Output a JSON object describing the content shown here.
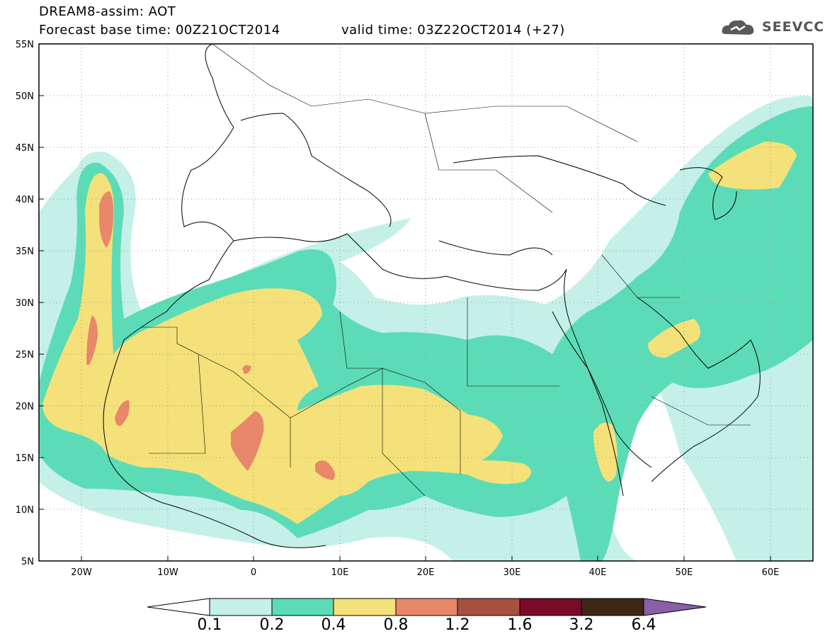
{
  "title": {
    "line1": "DREAM8-assim: AOT",
    "base_time": "Forecast base time: 00Z21OCT2014",
    "valid_time": "valid time: 03Z22OCT2014 (+27)"
  },
  "logo": {
    "text": "SEEVCCC",
    "icon": "cloud-icon"
  },
  "axes": {
    "lat_labels": [
      "55N",
      "50N",
      "45N",
      "40N",
      "35N",
      "30N",
      "25N",
      "20N",
      "15N",
      "10N",
      "5N"
    ],
    "lon_labels": [
      "20W",
      "10W",
      "0",
      "10E",
      "20E",
      "30E",
      "40E",
      "50E",
      "60E"
    ]
  },
  "colorbar": {
    "labels": [
      "0.1",
      "0.2",
      "0.4",
      "0.8",
      "1.2",
      "1.6",
      "3.2",
      "6.4"
    ],
    "colors": [
      "#c4f0e8",
      "#5cdcb6",
      "#f5e17a",
      "#e8876a",
      "#a8503d",
      "#7a0a2a",
      "#3d2716",
      "#8a5fa8"
    ],
    "left_extension_color": "#ffffff"
  },
  "field_colors": {
    "level_0.1": "#c4f0e8",
    "level_0.2": "#5cdcb6",
    "level_0.4": "#f5e17a",
    "level_0.8": "#e8876a"
  }
}
